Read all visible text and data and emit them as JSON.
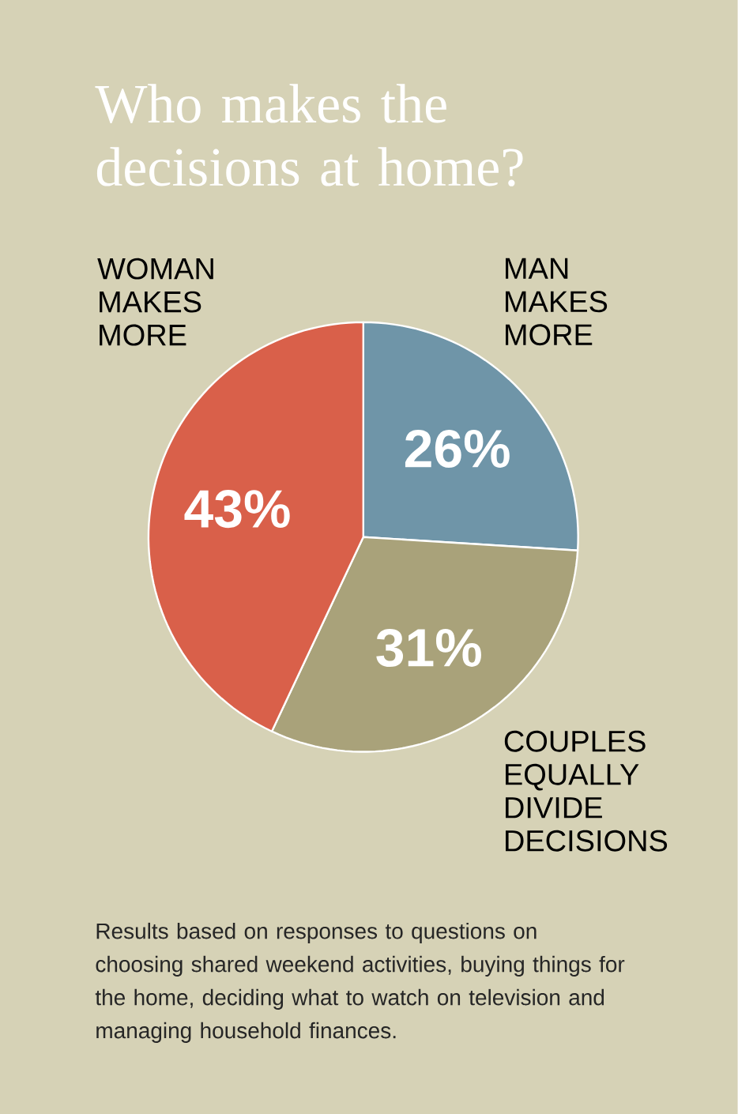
{
  "chart_data": {
    "type": "pie",
    "title": "Who makes the decisions at home?",
    "categories": [
      "MAN MAKES MORE",
      "COUPLES EQUALLY DIVIDE DECISIONS",
      "WOMAN MAKES MORE"
    ],
    "values": [
      26,
      31,
      43
    ],
    "colors": [
      "#6f95a8",
      "#a9a27a",
      "#d9604a"
    ],
    "value_labels": [
      "26%",
      "31%",
      "43%"
    ],
    "annotations": [
      "Results based on responses to questions on choosing shared weekend activities, buying things for the home, deciding what to watch on television and managing household finances."
    ]
  }
}
